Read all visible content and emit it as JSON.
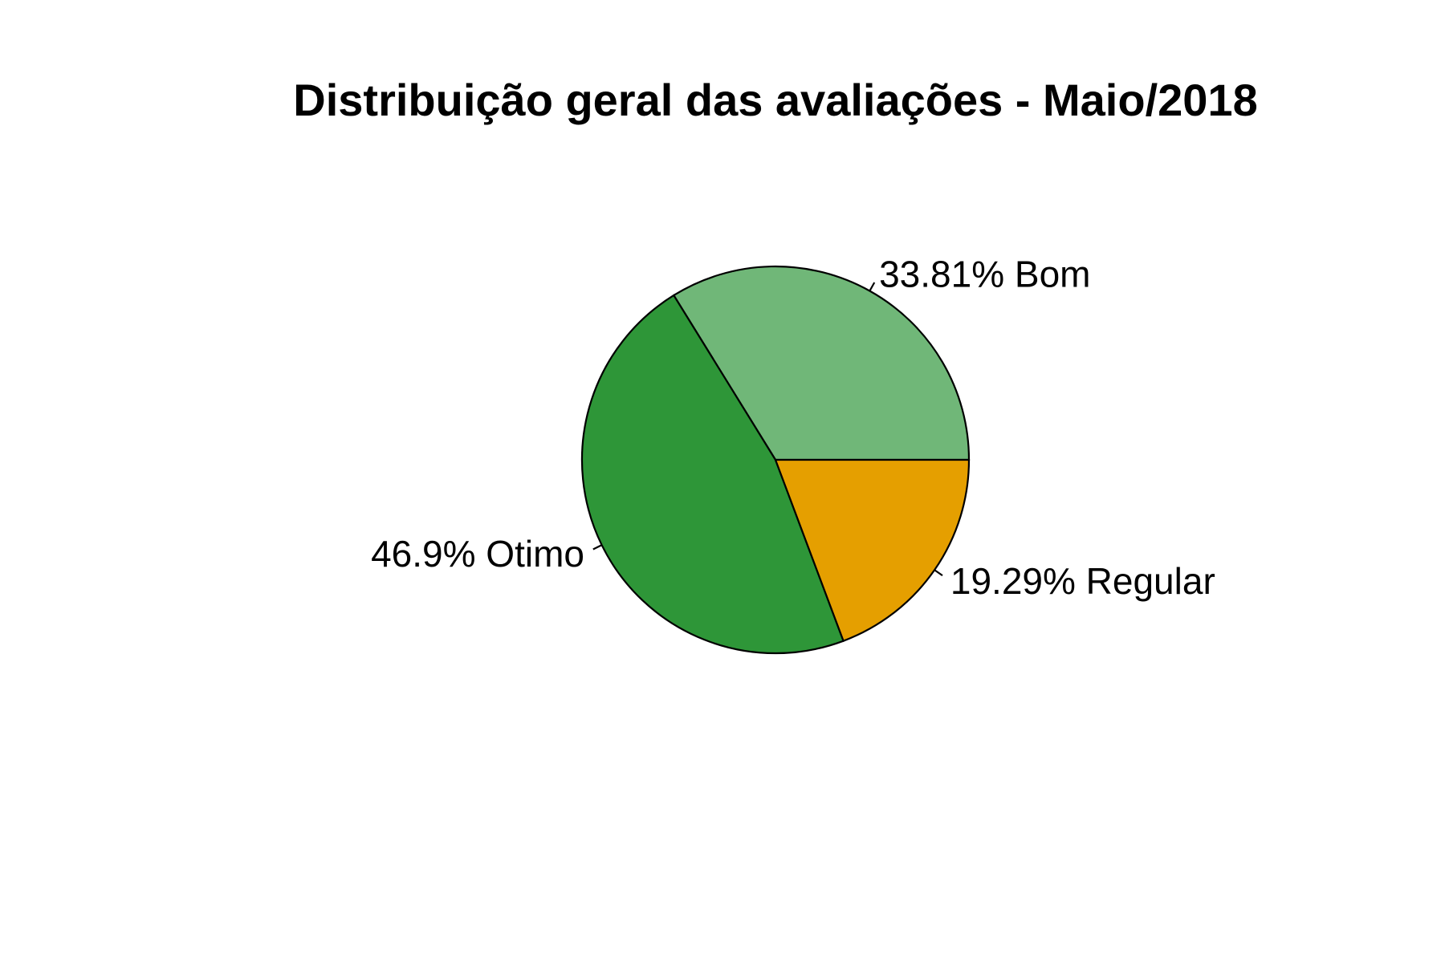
{
  "chart_data": {
    "type": "pie",
    "title": "Distribuição geral das avaliações - Maio/2018",
    "start_angle_deg": 0,
    "direction": "counterclockwise",
    "slices": [
      {
        "name": "Bom",
        "value": 33.81,
        "label": "33.81% Bom",
        "color": "#70b778"
      },
      {
        "name": "Otimo",
        "value": 46.9,
        "label": "46.9% Otimo",
        "color": "#2e9638"
      },
      {
        "name": "Regular",
        "value": 19.29,
        "label": "19.29% Regular",
        "color": "#e59f00"
      }
    ]
  }
}
